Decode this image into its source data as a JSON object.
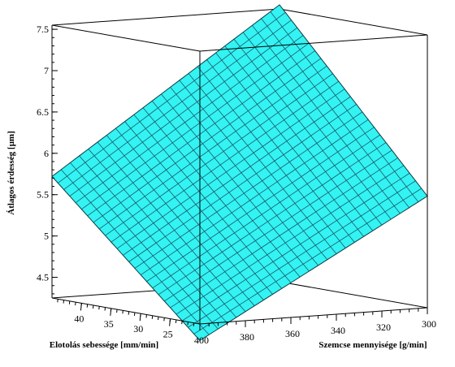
{
  "colors": {
    "surface": "#33f3f3",
    "mesh": "#1c5a6a",
    "box": "#000000"
  },
  "chart_data": {
    "type": "surface",
    "title": "",
    "xlabel": "Szemcse mennyisége [g/min]",
    "ylabel": "Előtolás sebessége [mm/min]",
    "zlabel": "Átlagos érdesség [μm]",
    "xlabel_display": "Szemcse mennyisége [g/min]",
    "ylabel_display": "Elotolás sebessége [mm/min]",
    "zlabel_display": "Átlagos érdesség [µm]",
    "x_ticks": [
      {
        "value": 400,
        "label": "400"
      },
      {
        "value": 380,
        "label": "380"
      },
      {
        "value": 360,
        "label": "360"
      },
      {
        "value": 340,
        "label": "340"
      },
      {
        "value": 320,
        "label": "320"
      },
      {
        "value": 300,
        "label": "300"
      }
    ],
    "y_ticks": [
      {
        "value": 25,
        "label": "25"
      },
      {
        "value": 30,
        "label": "30"
      },
      {
        "value": 35,
        "label": "35"
      },
      {
        "value": 40,
        "label": "40"
      }
    ],
    "z_ticks": [
      {
        "value": 4.5,
        "label": "4.5"
      },
      {
        "value": 5,
        "label": "5"
      },
      {
        "value": 5.5,
        "label": "5.5"
      },
      {
        "value": 6,
        "label": "6"
      },
      {
        "value": 6.5,
        "label": "6.5"
      },
      {
        "value": 7,
        "label": "7"
      },
      {
        "value": 7.5,
        "label": "7.5"
      }
    ],
    "xlim": [
      300,
      400
    ],
    "ylim": [
      20,
      45
    ],
    "zlim": [
      4.25,
      7.55
    ],
    "grid": false,
    "corner_values": [
      {
        "x": 400,
        "y": 20,
        "z": 4.05
      },
      {
        "x": 300,
        "y": 20,
        "z": 5.6
      },
      {
        "x": 300,
        "y": 45,
        "z": 7.6
      },
      {
        "x": 400,
        "y": 45,
        "z": 5.72
      }
    ],
    "mesh_divisions": 25
  }
}
